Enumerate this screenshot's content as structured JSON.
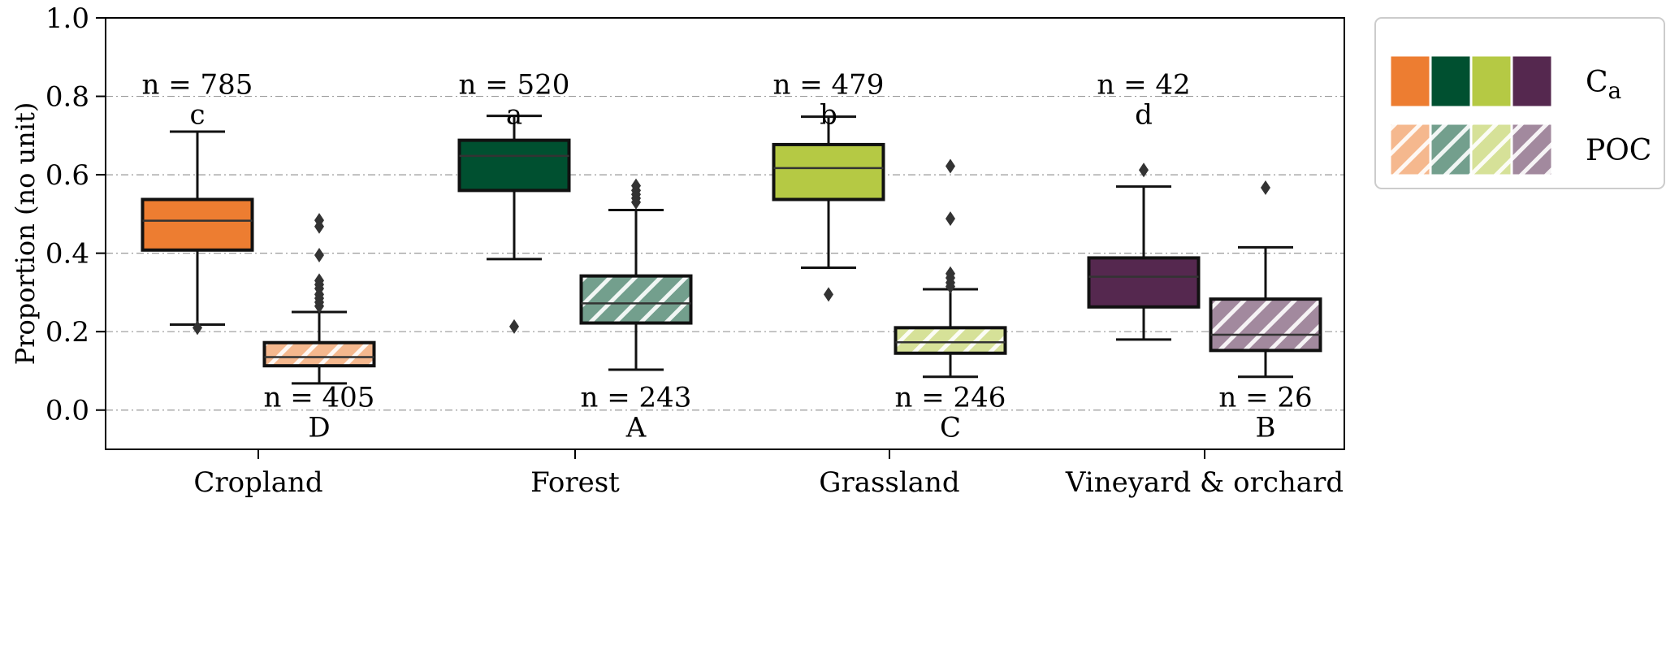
{
  "chart_data": {
    "type": "box",
    "ylabel": "Proportion (no unit)",
    "ylim": [
      -0.1,
      1.0
    ],
    "yticks": [
      "0.0",
      "0.2",
      "0.4",
      "0.6",
      "0.8",
      "1.0"
    ],
    "ytick_values": [
      0.0,
      0.2,
      0.4,
      0.6,
      0.8,
      1.0
    ],
    "grid": "horizontal dash-dot",
    "legend_position": "outside top-right",
    "categories": [
      "Cropland",
      "Forest",
      "Grassland",
      "Vineyard & orchard"
    ],
    "colors": [
      "#ed7d31",
      "#005030",
      "#b5c944",
      "#55284f"
    ],
    "series": [
      {
        "name": "Ca",
        "name_main": "C",
        "name_sub": "a",
        "hatched": false,
        "boxes": [
          {
            "category": "Cropland",
            "whislo": 0.218,
            "q1": 0.408,
            "med": 0.483,
            "q3": 0.537,
            "whishi": 0.71,
            "fliers": [
              0.21
            ],
            "n_label": "n = 785",
            "letter": "c"
          },
          {
            "category": "Forest",
            "whislo": 0.385,
            "q1": 0.56,
            "med": 0.648,
            "q3": 0.688,
            "whishi": 0.75,
            "fliers": [
              0.213
            ],
            "n_label": "n = 520",
            "letter": "a"
          },
          {
            "category": "Grassland",
            "whislo": 0.363,
            "q1": 0.537,
            "med": 0.617,
            "q3": 0.677,
            "whishi": 0.748,
            "fliers": [
              0.295
            ],
            "n_label": "n = 479",
            "letter": "b"
          },
          {
            "category": "Vineyard & orchard",
            "whislo": 0.18,
            "q1": 0.263,
            "med": 0.34,
            "q3": 0.388,
            "whishi": 0.57,
            "fliers": [
              0.612
            ],
            "n_label": "n = 42",
            "letter": "d"
          }
        ]
      },
      {
        "name": "POC",
        "hatched": true,
        "boxes": [
          {
            "category": "Cropland",
            "whislo": 0.068,
            "q1": 0.113,
            "med": 0.135,
            "q3": 0.172,
            "whishi": 0.25,
            "fliers": [
              0.265,
              0.275,
              0.285,
              0.295,
              0.31,
              0.32,
              0.33,
              0.395,
              0.468,
              0.484
            ],
            "n_label": "n = 405",
            "letter": "D"
          },
          {
            "category": "Forest",
            "whislo": 0.103,
            "q1": 0.222,
            "med": 0.272,
            "q3": 0.342,
            "whishi": 0.51,
            "fliers": [
              0.53,
              0.54,
              0.55,
              0.56,
              0.572
            ],
            "n_label": "n = 243",
            "letter": "A"
          },
          {
            "category": "Grassland",
            "whislo": 0.085,
            "q1": 0.145,
            "med": 0.173,
            "q3": 0.21,
            "whishi": 0.308,
            "fliers": [
              0.315,
              0.325,
              0.337,
              0.348,
              0.488,
              0.622
            ],
            "n_label": "n = 246",
            "letter": "C"
          },
          {
            "category": "Vineyard & orchard",
            "whislo": 0.085,
            "q1": 0.152,
            "med": 0.192,
            "q3": 0.283,
            "whishi": 0.415,
            "fliers": [
              0.567
            ],
            "n_label": "n = 26",
            "letter": "B"
          }
        ]
      }
    ]
  }
}
